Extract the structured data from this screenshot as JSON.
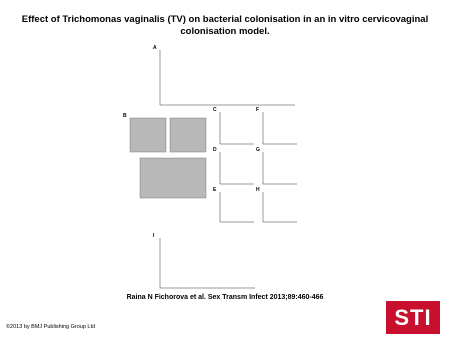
{
  "header": {
    "title": "Effect of Trichomonas vaginalis (TV) on bacterial colonisation in an in vitro cervicovaginal colonisation model."
  },
  "figure": {
    "panels": [
      "A",
      "B",
      "C",
      "D",
      "E",
      "F",
      "G",
      "H",
      "I"
    ]
  },
  "caption": "Raina N Fichorova et al. Sex Transm Infect 2013;89:460-466",
  "copyright": "©2013 by BMJ Publishing Group Ltd",
  "logo": "STI"
}
